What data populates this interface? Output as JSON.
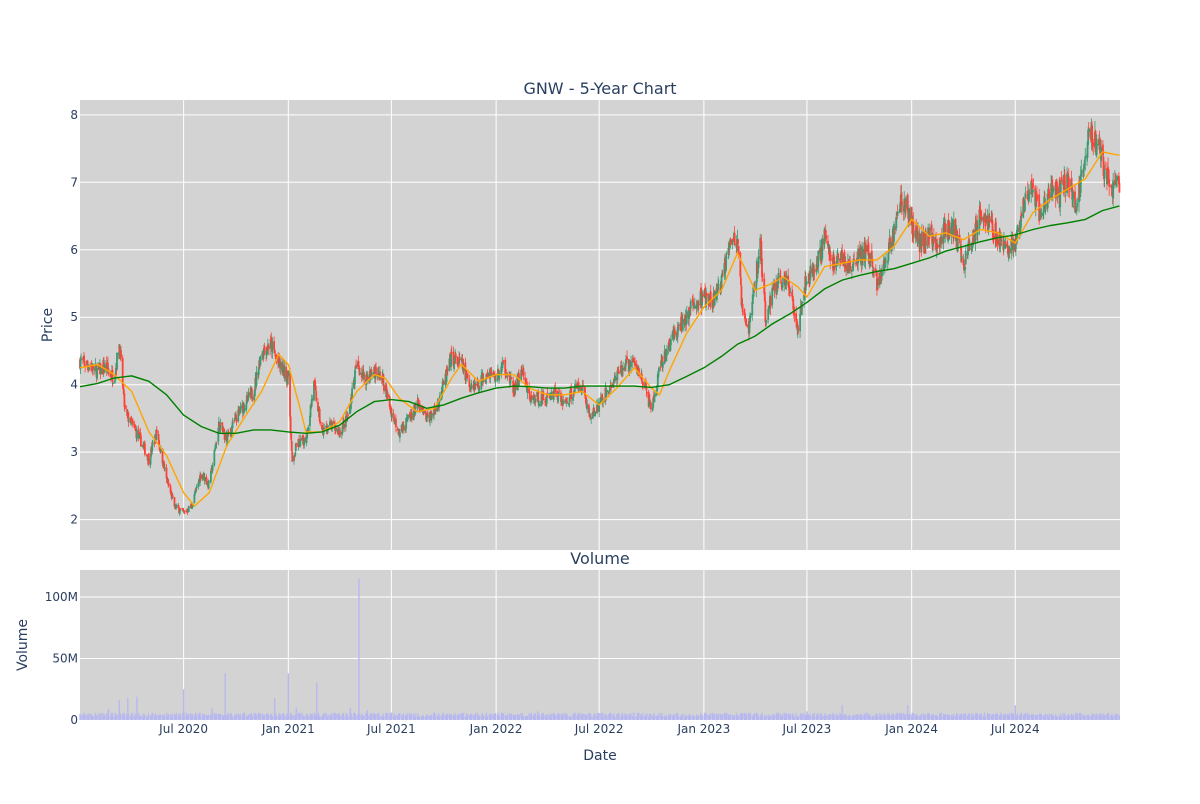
{
  "chart_data": {
    "type": "candlestick",
    "title": "GNW - 5-Year Chart",
    "colors": {
      "panel_bg": "#d3d3d3",
      "grid": "#ffffff",
      "text": "#2a3f5f",
      "up": "#3d9970",
      "down": "#ff4136",
      "ma_short": "#ffa500",
      "ma_long": "#008000",
      "volume": "#b8b8f0"
    },
    "price_panel": {
      "ylabel": "Price",
      "yticks": [
        2,
        3,
        4,
        5,
        6,
        7,
        8
      ],
      "ylim": [
        1.55,
        8.22
      ]
    },
    "volume_panel": {
      "title": "Volume",
      "ylabel": "Volume",
      "yticks": [
        {
          "value": 0,
          "label": "0"
        },
        {
          "value": 50000000,
          "label": "50M"
        },
        {
          "value": 100000000,
          "label": "100M"
        }
      ],
      "ylim": [
        0,
        122000000
      ]
    },
    "x_axis": {
      "label": "Date",
      "range": [
        "2020-01-01",
        "2025-01-01"
      ],
      "ticks": [
        {
          "date": "2020-07-01",
          "label": "Jul 2020"
        },
        {
          "date": "2021-01-01",
          "label": "Jan 2021"
        },
        {
          "date": "2021-07-01",
          "label": "Jul 2021"
        },
        {
          "date": "2022-01-01",
          "label": "Jan 2022"
        },
        {
          "date": "2022-07-01",
          "label": "Jul 2022"
        },
        {
          "date": "2023-01-01",
          "label": "Jan 2023"
        },
        {
          "date": "2023-07-01",
          "label": "Jul 2023"
        },
        {
          "date": "2024-01-01",
          "label": "Jan 2024"
        },
        {
          "date": "2024-07-01",
          "label": "Jul 2024"
        }
      ]
    },
    "close_series": [
      [
        "2020-01-01",
        4.35
      ],
      [
        "2020-01-15",
        4.3
      ],
      [
        "2020-02-01",
        4.2
      ],
      [
        "2020-02-15",
        4.25
      ],
      [
        "2020-03-01",
        4.1
      ],
      [
        "2020-03-10",
        4.6
      ],
      [
        "2020-03-20",
        3.6
      ],
      [
        "2020-04-01",
        3.4
      ],
      [
        "2020-04-15",
        3.2
      ],
      [
        "2020-05-01",
        2.9
      ],
      [
        "2020-05-15",
        3.3
      ],
      [
        "2020-06-01",
        2.6
      ],
      [
        "2020-06-15",
        2.2
      ],
      [
        "2020-07-01",
        2.1
      ],
      [
        "2020-07-15",
        2.2
      ],
      [
        "2020-08-01",
        2.7
      ],
      [
        "2020-08-15",
        2.5
      ],
      [
        "2020-09-01",
        3.4
      ],
      [
        "2020-09-15",
        3.2
      ],
      [
        "2020-10-01",
        3.5
      ],
      [
        "2020-10-15",
        3.7
      ],
      [
        "2020-11-01",
        3.9
      ],
      [
        "2020-11-15",
        4.5
      ],
      [
        "2020-12-01",
        4.6
      ],
      [
        "2020-12-15",
        4.3
      ],
      [
        "2021-01-01",
        4.1
      ],
      [
        "2021-01-08",
        2.8
      ],
      [
        "2021-01-15",
        3.1
      ],
      [
        "2021-02-01",
        3.2
      ],
      [
        "2021-02-15",
        4.0
      ],
      [
        "2021-03-01",
        3.3
      ],
      [
        "2021-03-15",
        3.4
      ],
      [
        "2021-04-01",
        3.3
      ],
      [
        "2021-04-15",
        3.5
      ],
      [
        "2021-05-01",
        4.3
      ],
      [
        "2021-05-15",
        4.1
      ],
      [
        "2021-06-01",
        4.2
      ],
      [
        "2021-06-15",
        4.1
      ],
      [
        "2021-07-01",
        3.6
      ],
      [
        "2021-07-15",
        3.3
      ],
      [
        "2021-08-01",
        3.5
      ],
      [
        "2021-08-15",
        3.7
      ],
      [
        "2021-09-01",
        3.5
      ],
      [
        "2021-09-15",
        3.6
      ],
      [
        "2021-10-01",
        4.0
      ],
      [
        "2021-10-15",
        4.4
      ],
      [
        "2021-11-01",
        4.3
      ],
      [
        "2021-11-15",
        4.0
      ],
      [
        "2021-12-01",
        4.0
      ],
      [
        "2021-12-15",
        4.2
      ],
      [
        "2022-01-01",
        4.1
      ],
      [
        "2022-01-15",
        4.3
      ],
      [
        "2022-02-01",
        3.9
      ],
      [
        "2022-02-15",
        4.2
      ],
      [
        "2022-03-01",
        3.8
      ],
      [
        "2022-03-15",
        3.8
      ],
      [
        "2022-04-01",
        3.8
      ],
      [
        "2022-04-15",
        3.9
      ],
      [
        "2022-05-01",
        3.7
      ],
      [
        "2022-05-15",
        3.9
      ],
      [
        "2022-06-01",
        4.0
      ],
      [
        "2022-06-15",
        3.5
      ],
      [
        "2022-07-01",
        3.7
      ],
      [
        "2022-07-15",
        3.9
      ],
      [
        "2022-08-01",
        4.1
      ],
      [
        "2022-08-15",
        4.3
      ],
      [
        "2022-09-01",
        4.3
      ],
      [
        "2022-09-15",
        4.1
      ],
      [
        "2022-10-01",
        3.6
      ],
      [
        "2022-10-15",
        4.2
      ],
      [
        "2022-11-01",
        4.6
      ],
      [
        "2022-11-15",
        4.8
      ],
      [
        "2022-12-01",
        5.0
      ],
      [
        "2022-12-15",
        5.2
      ],
      [
        "2023-01-01",
        5.3
      ],
      [
        "2023-01-15",
        5.2
      ],
      [
        "2023-02-01",
        5.5
      ],
      [
        "2023-02-15",
        6.2
      ],
      [
        "2023-03-01",
        6.1
      ],
      [
        "2023-03-10",
        5.0
      ],
      [
        "2023-03-20",
        4.8
      ],
      [
        "2023-04-01",
        5.5
      ],
      [
        "2023-04-10",
        6.1
      ],
      [
        "2023-04-20",
        4.9
      ],
      [
        "2023-05-01",
        5.4
      ],
      [
        "2023-05-15",
        5.6
      ],
      [
        "2023-06-01",
        5.4
      ],
      [
        "2023-06-15",
        4.9
      ],
      [
        "2023-07-01",
        5.6
      ],
      [
        "2023-07-15",
        5.7
      ],
      [
        "2023-08-01",
        6.2
      ],
      [
        "2023-08-15",
        5.8
      ],
      [
        "2023-09-01",
        5.9
      ],
      [
        "2023-09-15",
        5.7
      ],
      [
        "2023-10-01",
        5.9
      ],
      [
        "2023-10-15",
        6.0
      ],
      [
        "2023-11-01",
        5.5
      ],
      [
        "2023-11-15",
        5.8
      ],
      [
        "2023-12-01",
        6.3
      ],
      [
        "2023-12-15",
        6.8
      ],
      [
        "2024-01-01",
        6.4
      ],
      [
        "2024-01-15",
        6.1
      ],
      [
        "2024-02-01",
        6.2
      ],
      [
        "2024-02-15",
        6.1
      ],
      [
        "2024-03-01",
        6.3
      ],
      [
        "2024-03-15",
        6.3
      ],
      [
        "2024-04-01",
        5.8
      ],
      [
        "2024-04-15",
        6.1
      ],
      [
        "2024-05-01",
        6.6
      ],
      [
        "2024-05-15",
        6.4
      ],
      [
        "2024-06-01",
        6.2
      ],
      [
        "2024-06-15",
        6.0
      ],
      [
        "2024-07-01",
        6.1
      ],
      [
        "2024-07-15",
        6.6
      ],
      [
        "2024-08-01",
        6.9
      ],
      [
        "2024-08-15",
        6.5
      ],
      [
        "2024-09-01",
        6.9
      ],
      [
        "2024-09-15",
        6.8
      ],
      [
        "2024-10-01",
        7.1
      ],
      [
        "2024-10-15",
        6.6
      ],
      [
        "2024-11-01",
        7.4
      ],
      [
        "2024-11-10",
        7.8
      ],
      [
        "2024-11-20",
        7.6
      ],
      [
        "2024-12-01",
        7.3
      ],
      [
        "2024-12-15",
        6.9
      ],
      [
        "2024-12-31",
        6.95
      ]
    ],
    "series": [
      {
        "color": "#ffa500",
        "points": [
          [
            "2020-01-01",
            4.25
          ],
          [
            "2020-02-01",
            4.3
          ],
          [
            "2020-03-01",
            4.15
          ],
          [
            "2020-04-01",
            3.9
          ],
          [
            "2020-05-01",
            3.3
          ],
          [
            "2020-06-01",
            2.95
          ],
          [
            "2020-07-01",
            2.4
          ],
          [
            "2020-07-20",
            2.2
          ],
          [
            "2020-08-15",
            2.4
          ],
          [
            "2020-09-15",
            3.1
          ],
          [
            "2020-10-15",
            3.5
          ],
          [
            "2020-11-15",
            3.9
          ],
          [
            "2020-12-15",
            4.45
          ],
          [
            "2021-01-01",
            4.3
          ],
          [
            "2021-01-20",
            3.7
          ],
          [
            "2021-02-01",
            3.3
          ],
          [
            "2021-03-01",
            3.3
          ],
          [
            "2021-04-01",
            3.45
          ],
          [
            "2021-05-01",
            3.9
          ],
          [
            "2021-06-01",
            4.15
          ],
          [
            "2021-06-20",
            4.1
          ],
          [
            "2021-07-15",
            3.8
          ],
          [
            "2021-08-15",
            3.6
          ],
          [
            "2021-09-15",
            3.65
          ],
          [
            "2021-10-15",
            4.1
          ],
          [
            "2021-11-01",
            4.3
          ],
          [
            "2021-12-01",
            4.05
          ],
          [
            "2022-01-01",
            4.15
          ],
          [
            "2022-02-01",
            4.15
          ],
          [
            "2022-03-01",
            3.95
          ],
          [
            "2022-04-01",
            3.85
          ],
          [
            "2022-05-01",
            3.85
          ],
          [
            "2022-06-01",
            3.9
          ],
          [
            "2022-07-01",
            3.7
          ],
          [
            "2022-08-01",
            3.95
          ],
          [
            "2022-09-01",
            4.25
          ],
          [
            "2022-10-01",
            3.95
          ],
          [
            "2022-10-15",
            3.85
          ],
          [
            "2022-11-01",
            4.2
          ],
          [
            "2022-12-01",
            4.75
          ],
          [
            "2023-01-01",
            5.15
          ],
          [
            "2023-02-01",
            5.4
          ],
          [
            "2023-03-01",
            5.95
          ],
          [
            "2023-04-01",
            5.4
          ],
          [
            "2023-05-01",
            5.5
          ],
          [
            "2023-05-20",
            5.6
          ],
          [
            "2023-06-15",
            5.45
          ],
          [
            "2023-07-01",
            5.3
          ],
          [
            "2023-08-01",
            5.75
          ],
          [
            "2023-09-01",
            5.8
          ],
          [
            "2023-10-01",
            5.85
          ],
          [
            "2023-11-01",
            5.85
          ],
          [
            "2023-12-01",
            6.05
          ],
          [
            "2024-01-01",
            6.45
          ],
          [
            "2024-02-01",
            6.2
          ],
          [
            "2024-03-01",
            6.25
          ],
          [
            "2024-04-01",
            6.15
          ],
          [
            "2024-05-01",
            6.3
          ],
          [
            "2024-06-01",
            6.25
          ],
          [
            "2024-07-01",
            6.1
          ],
          [
            "2024-08-01",
            6.55
          ],
          [
            "2024-09-01",
            6.75
          ],
          [
            "2024-10-01",
            6.9
          ],
          [
            "2024-11-01",
            7.05
          ],
          [
            "2024-12-01",
            7.45
          ],
          [
            "2024-12-31",
            7.4
          ]
        ]
      },
      {
        "color": "#008000",
        "points": [
          [
            "2020-01-01",
            3.97
          ],
          [
            "2020-02-01",
            4.02
          ],
          [
            "2020-03-01",
            4.1
          ],
          [
            "2020-04-01",
            4.13
          ],
          [
            "2020-05-01",
            4.05
          ],
          [
            "2020-06-01",
            3.85
          ],
          [
            "2020-07-01",
            3.55
          ],
          [
            "2020-08-01",
            3.38
          ],
          [
            "2020-09-01",
            3.28
          ],
          [
            "2020-10-01",
            3.28
          ],
          [
            "2020-11-01",
            3.33
          ],
          [
            "2020-12-01",
            3.33
          ],
          [
            "2021-01-01",
            3.3
          ],
          [
            "2021-02-01",
            3.28
          ],
          [
            "2021-03-01",
            3.3
          ],
          [
            "2021-04-01",
            3.4
          ],
          [
            "2021-05-01",
            3.6
          ],
          [
            "2021-06-01",
            3.75
          ],
          [
            "2021-07-01",
            3.78
          ],
          [
            "2021-08-01",
            3.75
          ],
          [
            "2021-09-01",
            3.65
          ],
          [
            "2021-10-01",
            3.7
          ],
          [
            "2021-11-01",
            3.8
          ],
          [
            "2021-12-01",
            3.88
          ],
          [
            "2022-01-01",
            3.95
          ],
          [
            "2022-02-01",
            3.98
          ],
          [
            "2022-03-01",
            3.97
          ],
          [
            "2022-04-01",
            3.95
          ],
          [
            "2022-05-01",
            3.95
          ],
          [
            "2022-06-01",
            3.98
          ],
          [
            "2022-07-01",
            3.98
          ],
          [
            "2022-08-01",
            3.98
          ],
          [
            "2022-09-01",
            3.98
          ],
          [
            "2022-10-01",
            3.96
          ],
          [
            "2022-11-01",
            4.0
          ],
          [
            "2022-12-01",
            4.12
          ],
          [
            "2023-01-01",
            4.25
          ],
          [
            "2023-02-01",
            4.42
          ],
          [
            "2023-03-01",
            4.6
          ],
          [
            "2023-04-01",
            4.72
          ],
          [
            "2023-05-01",
            4.9
          ],
          [
            "2023-06-01",
            5.05
          ],
          [
            "2023-07-01",
            5.22
          ],
          [
            "2023-08-01",
            5.42
          ],
          [
            "2023-09-01",
            5.55
          ],
          [
            "2023-10-01",
            5.62
          ],
          [
            "2023-11-01",
            5.68
          ],
          [
            "2023-12-01",
            5.72
          ],
          [
            "2024-01-01",
            5.8
          ],
          [
            "2024-02-01",
            5.88
          ],
          [
            "2024-03-01",
            5.98
          ],
          [
            "2024-04-01",
            6.05
          ],
          [
            "2024-05-01",
            6.12
          ],
          [
            "2024-06-01",
            6.18
          ],
          [
            "2024-07-01",
            6.22
          ],
          [
            "2024-08-01",
            6.3
          ],
          [
            "2024-09-01",
            6.36
          ],
          [
            "2024-10-01",
            6.4
          ],
          [
            "2024-11-01",
            6.45
          ],
          [
            "2024-12-01",
            6.58
          ],
          [
            "2024-12-31",
            6.65
          ]
        ]
      }
    ],
    "volume_spikes": [
      [
        "2020-02-20",
        9000000
      ],
      [
        "2020-03-10",
        16000000
      ],
      [
        "2020-03-25",
        18000000
      ],
      [
        "2020-04-10",
        19000000
      ],
      [
        "2020-07-01",
        25000000
      ],
      [
        "2020-08-20",
        10000000
      ],
      [
        "2020-09-12",
        38000000
      ],
      [
        "2020-12-08",
        18000000
      ],
      [
        "2021-01-01",
        38000000
      ],
      [
        "2021-01-15",
        10000000
      ],
      [
        "2021-02-20",
        30000000
      ],
      [
        "2021-04-20",
        10000000
      ],
      [
        "2021-05-05",
        115000000
      ],
      [
        "2021-05-20",
        8000000
      ],
      [
        "2021-07-01",
        6000000
      ],
      [
        "2022-03-15",
        7000000
      ],
      [
        "2023-02-10",
        6000000
      ],
      [
        "2023-07-01",
        7000000
      ],
      [
        "2023-09-01",
        12000000
      ],
      [
        "2023-12-25",
        12000000
      ],
      [
        "2024-07-01",
        12000000
      ]
    ]
  }
}
